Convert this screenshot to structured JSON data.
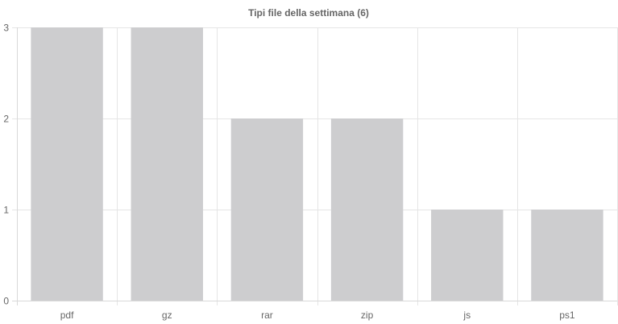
{
  "chart_data": {
    "type": "bar",
    "title": "Tipi file della settimana (6)",
    "categories": [
      "pdf",
      "gz",
      "rar",
      "zip",
      "js",
      "ps1"
    ],
    "values": [
      3,
      3,
      2,
      2,
      1,
      1
    ],
    "ylim": [
      0,
      3
    ],
    "yticks": [
      "0",
      "1",
      "2",
      "3"
    ],
    "grid": true,
    "legend": "none",
    "bar_color": "#cdcdcf"
  }
}
